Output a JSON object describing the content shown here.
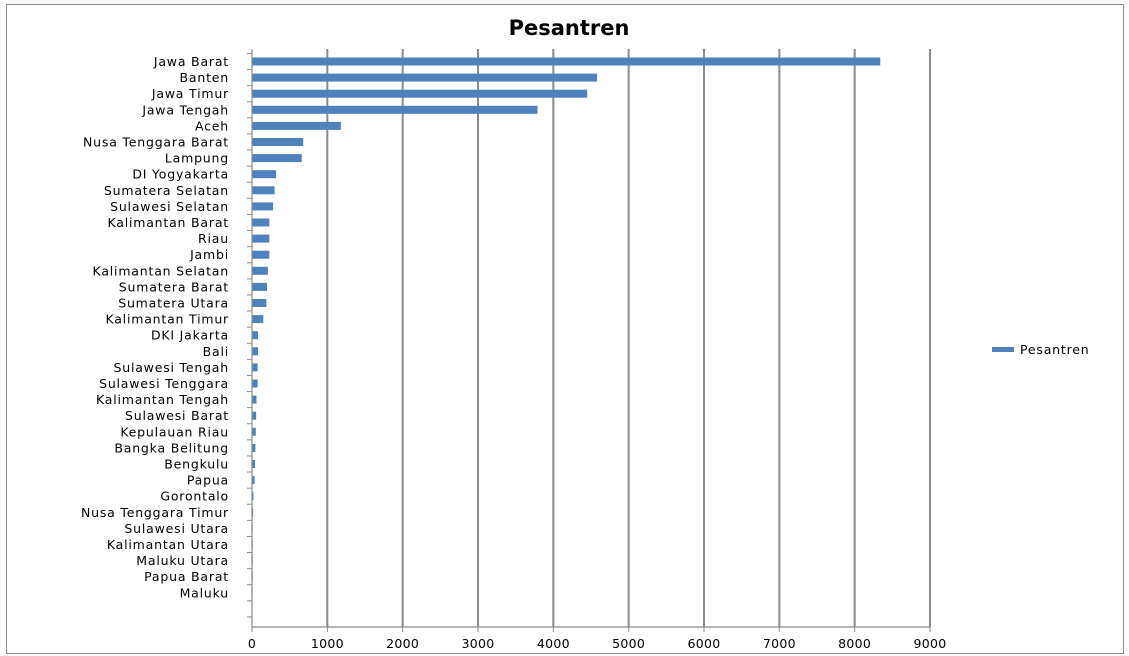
{
  "chart_data": {
    "type": "bar",
    "orientation": "horizontal",
    "title": "Pesantren",
    "xlabel": "",
    "ylabel": "",
    "xlim": [
      0,
      9000
    ],
    "x_ticks": [
      0,
      1000,
      2000,
      3000,
      4000,
      5000,
      6000,
      7000,
      8000,
      9000
    ],
    "grid": true,
    "legend_position": "right",
    "categories": [
      "Jawa Barat",
      "Banten",
      "Jawa Timur",
      "Jawa Tengah",
      "Aceh",
      "Nusa Tenggara Barat",
      "Lampung",
      "DI Yogyakarta",
      "Sumatera Selatan",
      "Sulawesi Selatan",
      "Kalimantan Barat",
      "Riau",
      "Jambi",
      "Kalimantan Selatan",
      "Sumatera Barat",
      "Sumatera Utara",
      "Kalimantan Timur",
      "DKI Jakarta",
      "Bali",
      "Sulawesi Tengah",
      "Sulawesi Tenggara",
      "Kalimantan Tengah",
      "Sulawesi Barat",
      "Kepulauan Riau",
      "Bangka Belitung",
      "Bengkulu",
      "Papua",
      "Gorontalo",
      "Nusa Tenggara Timur",
      "Sulawesi Utara",
      "Kalimantan Utara",
      "Maluku Utara",
      "Papua Barat",
      "Maluku"
    ],
    "series": [
      {
        "name": "Pesantren",
        "color": "#4f81bd",
        "values": [
          8340,
          4580,
          4450,
          3790,
          1180,
          680,
          660,
          320,
          300,
          280,
          230,
          230,
          230,
          210,
          200,
          190,
          150,
          80,
          80,
          75,
          75,
          60,
          55,
          50,
          45,
          40,
          35,
          20,
          15,
          10,
          10,
          10,
          10,
          5
        ]
      }
    ]
  }
}
